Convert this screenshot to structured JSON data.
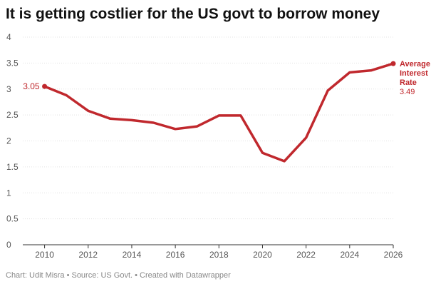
{
  "title": "It is getting costlier for the US govt to borrow money",
  "footer": "Chart: Udit Misra • Source: US Govt. • Created with Datawrapper",
  "colors": {
    "line": "#c0282d",
    "grid": "#e3e3e3",
    "baseline": "#333333"
  },
  "chart_data": {
    "type": "line",
    "title": "It is getting costlier for the US govt to borrow money",
    "xlabel": "",
    "ylabel": "",
    "xlim": [
      2009,
      2026
    ],
    "ylim": [
      0,
      4
    ],
    "x_ticks": [
      2010,
      2012,
      2014,
      2016,
      2018,
      2020,
      2022,
      2024,
      2026
    ],
    "y_ticks": [
      0,
      0.5,
      1,
      1.5,
      2,
      2.5,
      3,
      3.5,
      4
    ],
    "grid": true,
    "series": [
      {
        "name": "Average Interest Rate",
        "x": [
          2010,
          2011,
          2012,
          2013,
          2014,
          2015,
          2016,
          2017,
          2018,
          2019,
          2020,
          2021,
          2022,
          2023,
          2024,
          2025,
          2026
        ],
        "y": [
          3.05,
          2.88,
          2.58,
          2.43,
          2.4,
          2.35,
          2.23,
          2.28,
          2.49,
          2.49,
          1.77,
          1.61,
          2.06,
          2.97,
          3.32,
          3.36,
          3.49
        ]
      }
    ],
    "annotations": {
      "start_value": "3.05",
      "end_name_lines": [
        "Average",
        "Interest",
        "Rate"
      ],
      "end_value": "3.49"
    }
  }
}
